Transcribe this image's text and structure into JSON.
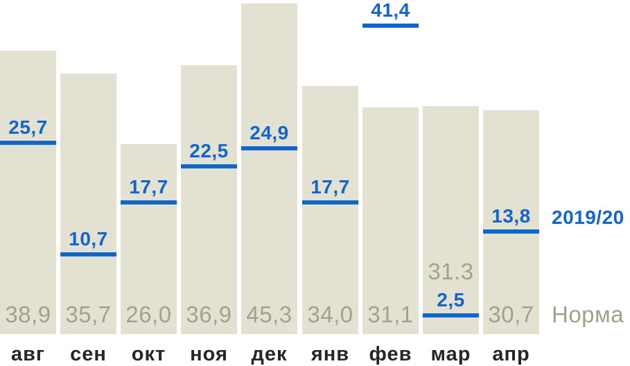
{
  "chart_data": {
    "type": "bar",
    "categories": [
      "авг",
      "сен",
      "окт",
      "ноя",
      "дек",
      "янв",
      "фев",
      "мар",
      "апр"
    ],
    "series": [
      {
        "name": "2019/20",
        "render": "tick-line",
        "color": "#1166cc",
        "values": [
          25.7,
          10.7,
          17.7,
          22.5,
          24.9,
          17.7,
          41.4,
          2.5,
          13.8
        ],
        "labels": [
          "25,7",
          "10,7",
          "17,7",
          "22,5",
          "24,9",
          "17,7",
          "41,4",
          "2,5",
          "13,8"
        ]
      },
      {
        "name": "Норма",
        "render": "bar",
        "color": "#e3e1d2",
        "values": [
          38.9,
          35.7,
          26.0,
          36.9,
          45.3,
          34.0,
          31.1,
          31.3,
          30.7
        ],
        "labels": [
          "38,9",
          "35,7",
          "26,0",
          "36,9",
          "45,3",
          "34,0",
          "31,1",
          "31.3",
          "30,7"
        ]
      }
    ],
    "legend_position": "right",
    "value_axis_visible": false,
    "grid": false,
    "colors": {
      "accent_blue": "#1166cc",
      "bar_fill": "#e3e1d2",
      "norm_text": "#a3a08c",
      "month_text": "#262626",
      "background": "#ffffff"
    }
  }
}
